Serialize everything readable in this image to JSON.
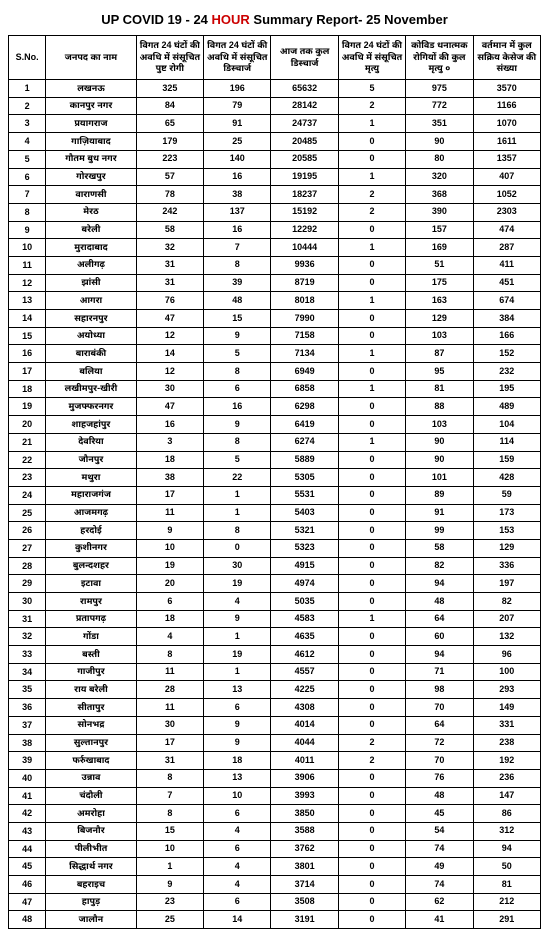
{
  "title": {
    "part1": "UP COVID 19 - 24 ",
    "red": "HOUR",
    "part2": " Summary Report- 25 November"
  },
  "headers": [
    "S.No.",
    "जनपद का नाम",
    "विगत 24 घंटों की अवधि में संसूचित पुष्ट रोगी",
    "विगत 24 घंटों की अवधि में संसूचित डिस्चार्ज",
    "आज तक कुल डिस्चार्ज",
    "विगत 24 घंटों की अवधि में संसूचित मृत्यु",
    "कोविड धनात्मक रोगियों की कुल मृत्यु ०",
    "वर्तमान में कुल सक्रिय केसेज की संख्या"
  ],
  "rows": [
    [
      "1",
      "लखनऊ",
      "325",
      "196",
      "65632",
      "5",
      "975",
      "3570"
    ],
    [
      "2",
      "कानपुर नगर",
      "84",
      "79",
      "28142",
      "2",
      "772",
      "1166"
    ],
    [
      "3",
      "प्रयागराज",
      "65",
      "91",
      "24737",
      "1",
      "351",
      "1070"
    ],
    [
      "4",
      "गाज़ियाबाद",
      "179",
      "25",
      "20485",
      "0",
      "90",
      "1611"
    ],
    [
      "5",
      "गौतम बुध नगर",
      "223",
      "140",
      "20585",
      "0",
      "80",
      "1357"
    ],
    [
      "6",
      "गोरखपुर",
      "57",
      "16",
      "19195",
      "1",
      "320",
      "407"
    ],
    [
      "7",
      "वाराणसी",
      "78",
      "38",
      "18237",
      "2",
      "368",
      "1052"
    ],
    [
      "8",
      "मेरठ",
      "242",
      "137",
      "15192",
      "2",
      "390",
      "2303"
    ],
    [
      "9",
      "बरेली",
      "58",
      "16",
      "12292",
      "0",
      "157",
      "474"
    ],
    [
      "10",
      "मुरादाबाद",
      "32",
      "7",
      "10444",
      "1",
      "169",
      "287"
    ],
    [
      "11",
      "अलीगढ़",
      "31",
      "8",
      "9936",
      "0",
      "51",
      "411"
    ],
    [
      "12",
      "झांसी",
      "31",
      "39",
      "8719",
      "0",
      "175",
      "451"
    ],
    [
      "13",
      "आगरा",
      "76",
      "48",
      "8018",
      "1",
      "163",
      "674"
    ],
    [
      "14",
      "सहारनपुर",
      "47",
      "15",
      "7990",
      "0",
      "129",
      "384"
    ],
    [
      "15",
      "अयोध्या",
      "12",
      "9",
      "7158",
      "0",
      "103",
      "166"
    ],
    [
      "16",
      "बाराबंकी",
      "14",
      "5",
      "7134",
      "1",
      "87",
      "152"
    ],
    [
      "17",
      "बलिया",
      "12",
      "8",
      "6949",
      "0",
      "95",
      "232"
    ],
    [
      "18",
      "लखीमपुर-खीरी",
      "30",
      "6",
      "6858",
      "1",
      "81",
      "195"
    ],
    [
      "19",
      "मुजफ्फरनगर",
      "47",
      "16",
      "6298",
      "0",
      "88",
      "489"
    ],
    [
      "20",
      "शाहजहांपुर",
      "16",
      "9",
      "6419",
      "0",
      "103",
      "104"
    ],
    [
      "21",
      "देवरिया",
      "3",
      "8",
      "6274",
      "1",
      "90",
      "114"
    ],
    [
      "22",
      "जौनपुर",
      "18",
      "5",
      "5889",
      "0",
      "90",
      "159"
    ],
    [
      "23",
      "मथुरा",
      "38",
      "22",
      "5305",
      "0",
      "101",
      "428"
    ],
    [
      "24",
      "महाराजगंज",
      "17",
      "1",
      "5531",
      "0",
      "89",
      "59"
    ],
    [
      "25",
      "आजमगढ़",
      "11",
      "1",
      "5403",
      "0",
      "91",
      "173"
    ],
    [
      "26",
      "हरदोई",
      "9",
      "8",
      "5321",
      "0",
      "99",
      "153"
    ],
    [
      "27",
      "कुशीनगर",
      "10",
      "0",
      "5323",
      "0",
      "58",
      "129"
    ],
    [
      "28",
      "बुलन्दशहर",
      "19",
      "30",
      "4915",
      "0",
      "82",
      "336"
    ],
    [
      "29",
      "इटावा",
      "20",
      "19",
      "4974",
      "0",
      "94",
      "197"
    ],
    [
      "30",
      "रामपुर",
      "6",
      "4",
      "5035",
      "0",
      "48",
      "82"
    ],
    [
      "31",
      "प्रतापगढ़",
      "18",
      "9",
      "4583",
      "1",
      "64",
      "207"
    ],
    [
      "32",
      "गोंडा",
      "4",
      "1",
      "4635",
      "0",
      "60",
      "132"
    ],
    [
      "33",
      "बस्ती",
      "8",
      "19",
      "4612",
      "0",
      "94",
      "96"
    ],
    [
      "34",
      "गाजीपुर",
      "11",
      "1",
      "4557",
      "0",
      "71",
      "100"
    ],
    [
      "35",
      "राय बरेली",
      "28",
      "13",
      "4225",
      "0",
      "98",
      "293"
    ],
    [
      "36",
      "सीतापुर",
      "11",
      "6",
      "4308",
      "0",
      "70",
      "149"
    ],
    [
      "37",
      "सोनभद्र",
      "30",
      "9",
      "4014",
      "0",
      "64",
      "331"
    ],
    [
      "38",
      "सुल्तानपुर",
      "17",
      "9",
      "4044",
      "2",
      "72",
      "238"
    ],
    [
      "39",
      "फर्रुखाबाद",
      "31",
      "18",
      "4011",
      "2",
      "70",
      "192"
    ],
    [
      "40",
      "उन्नाव",
      "8",
      "13",
      "3906",
      "0",
      "76",
      "236"
    ],
    [
      "41",
      "चंदौली",
      "7",
      "10",
      "3993",
      "0",
      "48",
      "147"
    ],
    [
      "42",
      "अमरोहा",
      "8",
      "6",
      "3850",
      "0",
      "45",
      "86"
    ],
    [
      "43",
      "बिजनौर",
      "15",
      "4",
      "3588",
      "0",
      "54",
      "312"
    ],
    [
      "44",
      "पीलीभीत",
      "10",
      "6",
      "3762",
      "0",
      "74",
      "94"
    ],
    [
      "45",
      "सिद्धार्थ नगर",
      "1",
      "4",
      "3801",
      "0",
      "49",
      "50"
    ],
    [
      "46",
      "बहराइच",
      "9",
      "4",
      "3714",
      "0",
      "74",
      "81"
    ],
    [
      "47",
      "हापुड़",
      "23",
      "6",
      "3508",
      "0",
      "62",
      "212"
    ],
    [
      "48",
      "जालौन",
      "25",
      "14",
      "3191",
      "0",
      "41",
      "291"
    ]
  ]
}
